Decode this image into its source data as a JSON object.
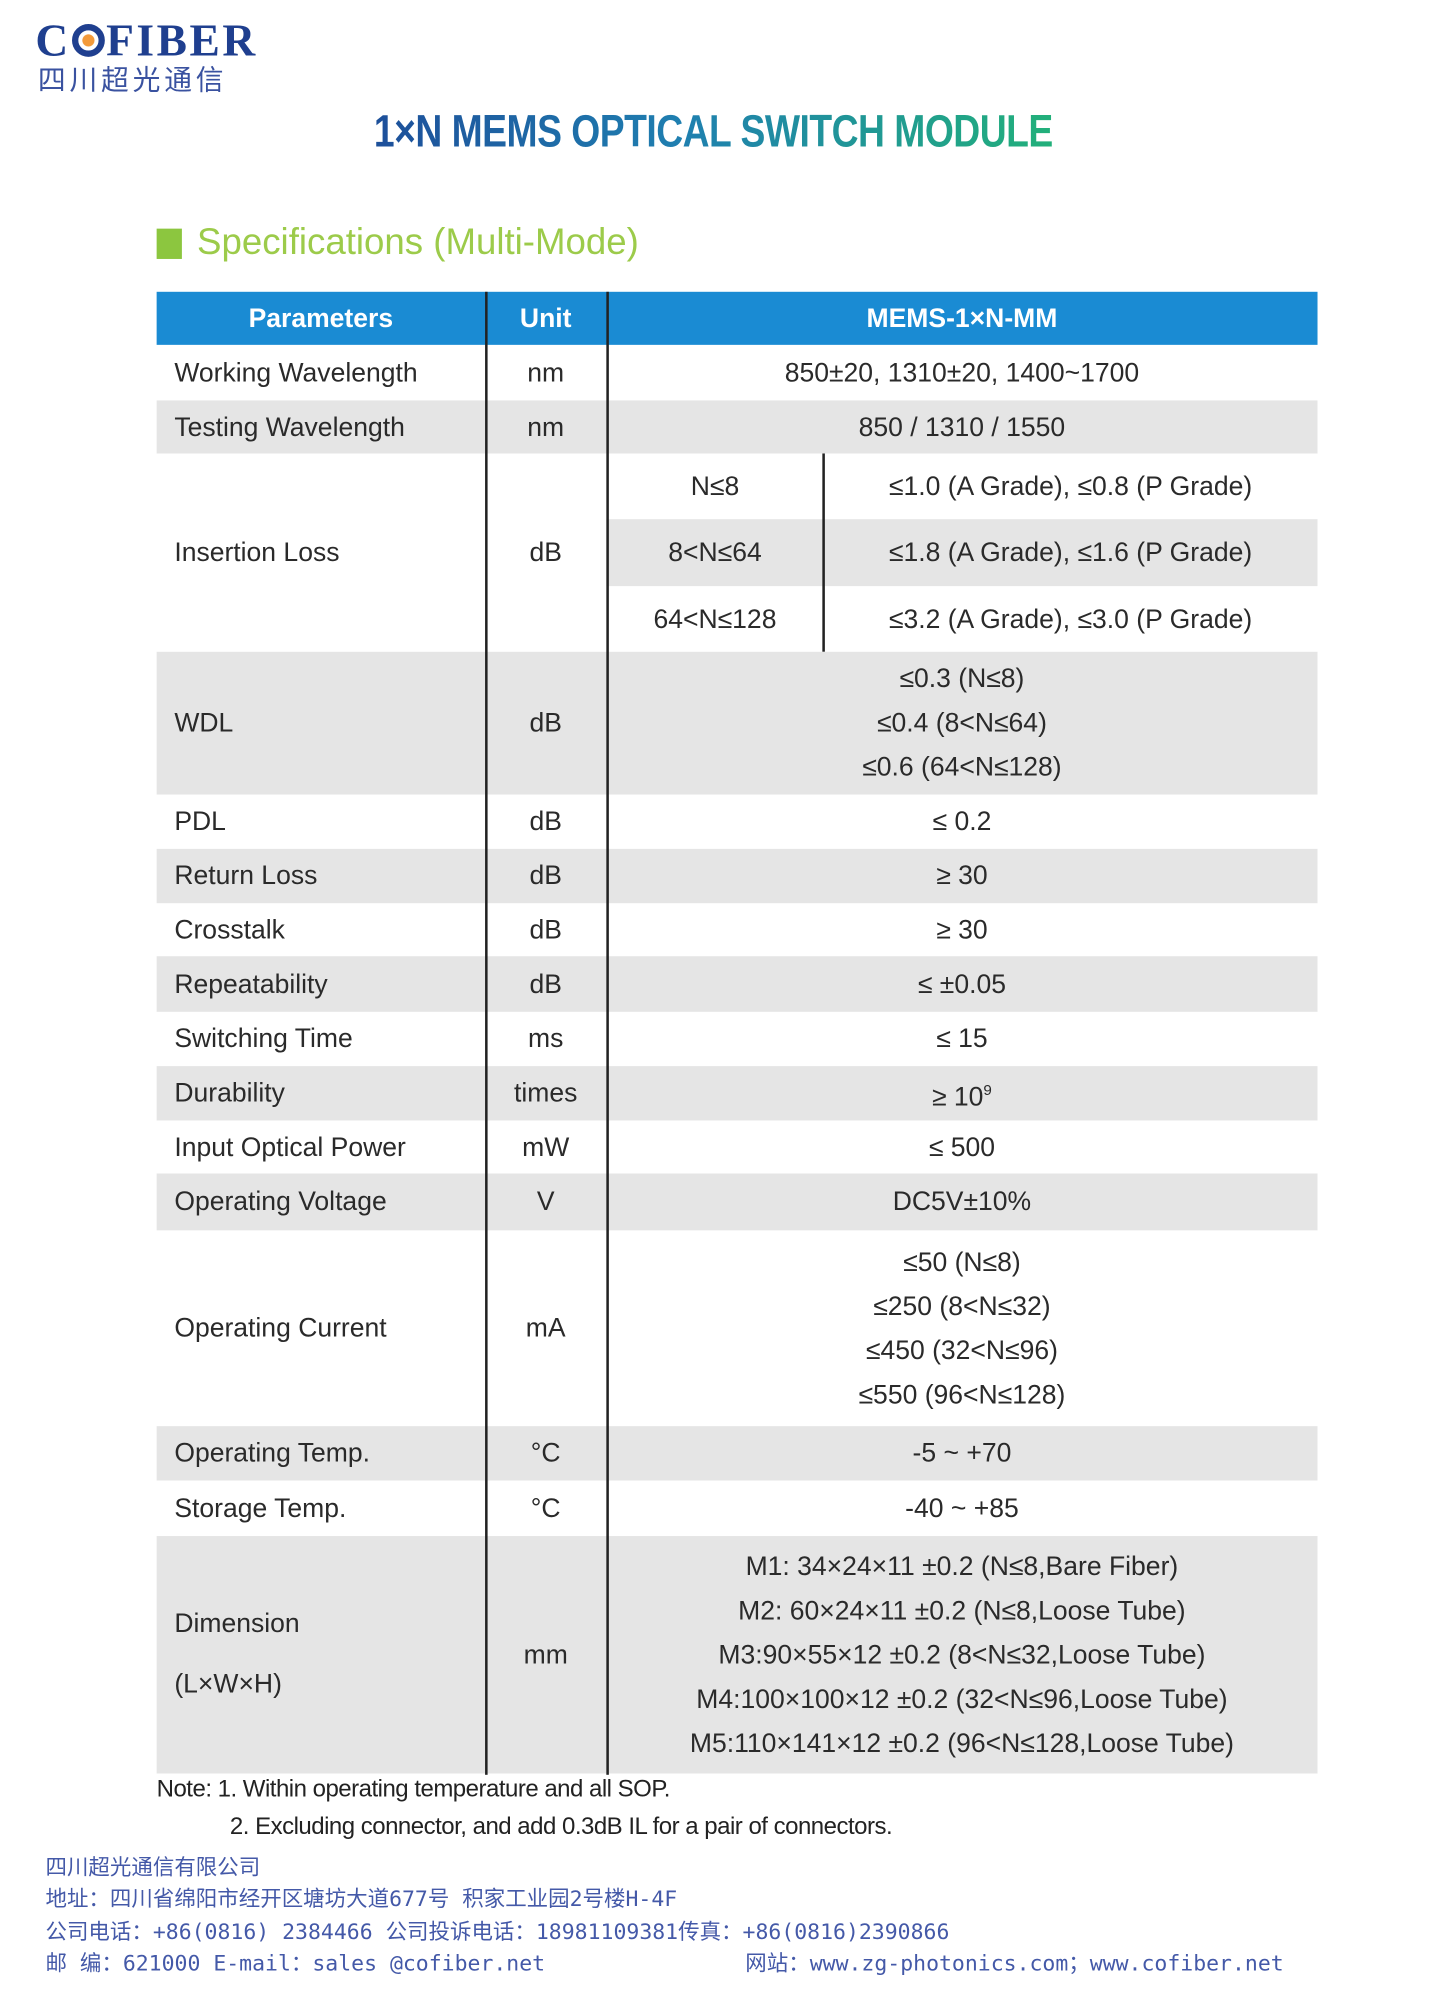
{
  "logo": {
    "brand": "COFIBER",
    "brand_cn": "四川超光通信"
  },
  "title": "1×N MEMS OPTICAL SWITCH MODULE",
  "section_heading": "Specifications (Multi-Mode)",
  "colors": {
    "header": "#1a8bd3",
    "section_green": "#9ccb4a",
    "row_shade": "#e5e5e5",
    "footer_blue": "#4459a8"
  },
  "table": {
    "headers": [
      "Parameters",
      "Unit",
      "MEMS-1×N-MM"
    ],
    "rows": [
      {
        "param": "Working Wavelength",
        "unit": "nm",
        "values": [
          "850±20, 1310±20, 1400~1700"
        ]
      },
      {
        "param": "Testing Wavelength",
        "unit": "nm",
        "values": [
          "850 / 1310 / 1550"
        ]
      },
      {
        "param": "Insertion Loss",
        "unit": "dB",
        "sub": [
          {
            "n": "N≤8",
            "v": "≤1.0 (A Grade), ≤0.8 (P Grade)"
          },
          {
            "n": "8<N≤64",
            "v": "≤1.8 (A Grade), ≤1.6 (P Grade)"
          },
          {
            "n": "64<N≤128",
            "v": "≤3.2 (A Grade), ≤3.0 (P Grade)"
          }
        ]
      },
      {
        "param": "WDL",
        "unit": "dB",
        "values": [
          "≤0.3 (N≤8)",
          "≤0.4 (8<N≤64)",
          "≤0.6 (64<N≤128)"
        ]
      },
      {
        "param": "PDL",
        "unit": "dB",
        "values": [
          "≤ 0.2"
        ]
      },
      {
        "param": "Return Loss",
        "unit": "dB",
        "values": [
          "≥ 30"
        ]
      },
      {
        "param": "Crosstalk",
        "unit": "dB",
        "values": [
          "≥ 30"
        ]
      },
      {
        "param": "Repeatability",
        "unit": "dB",
        "values": [
          "≤ ±0.05"
        ]
      },
      {
        "param": "Switching Time",
        "unit": "ms",
        "values": [
          "≤ 15"
        ]
      },
      {
        "param": "Durability",
        "unit": "times",
        "values": [
          "≥ 10"
        ],
        "sup": "9"
      },
      {
        "param": "Input Optical Power",
        "unit": "mW",
        "values": [
          "≤ 500"
        ]
      },
      {
        "param": "Operating Voltage",
        "unit": "V",
        "values": [
          "DC5V±10%"
        ]
      },
      {
        "param": "Operating Current",
        "unit": "mA",
        "values": [
          "≤50 (N≤8)",
          "≤250 (8<N≤32)",
          "≤450 (32<N≤96)",
          "≤550 (96<N≤128)"
        ]
      },
      {
        "param": "Operating Temp.",
        "unit": "°C",
        "values": [
          "-5 ~ +70"
        ]
      },
      {
        "param": "Storage Temp.",
        "unit": "°C",
        "values": [
          "-40 ~ +85"
        ]
      },
      {
        "param": "Dimension (L×W×H)",
        "param_lines": [
          "Dimension",
          "(L×W×H)"
        ],
        "unit": "mm",
        "values": [
          "M1: 34×24×11 ±0.2 (N≤8,Bare Fiber)",
          "M2: 60×24×11 ±0.2 (N≤8,Loose Tube)",
          "M3:90×55×12 ±0.2 (8<N≤32,Loose Tube)",
          "M4:100×100×12 ±0.2 (32<N≤96,Loose Tube)",
          "M5:110×141×12 ±0.2 (96<N≤128,Loose Tube)"
        ]
      }
    ]
  },
  "notes": [
    "Note: 1. Within operating temperature and all SOP.",
    "2. Excluding connector, and add 0.3dB IL for a pair of connectors."
  ],
  "footer": [
    "四川超光通信有限公司",
    "地址：四川省绵阳市经开区塘坊大道677号 积家工业园2号楼H-4F",
    "公司电话：+86(0816) 2384466  公司投诉电话：18981109381传真：+86(0816)2390866",
    "邮  编：621000  E-mail：sales @cofiber.net",
    "网站：www.zg-photonics.com；www.cofiber.net"
  ]
}
